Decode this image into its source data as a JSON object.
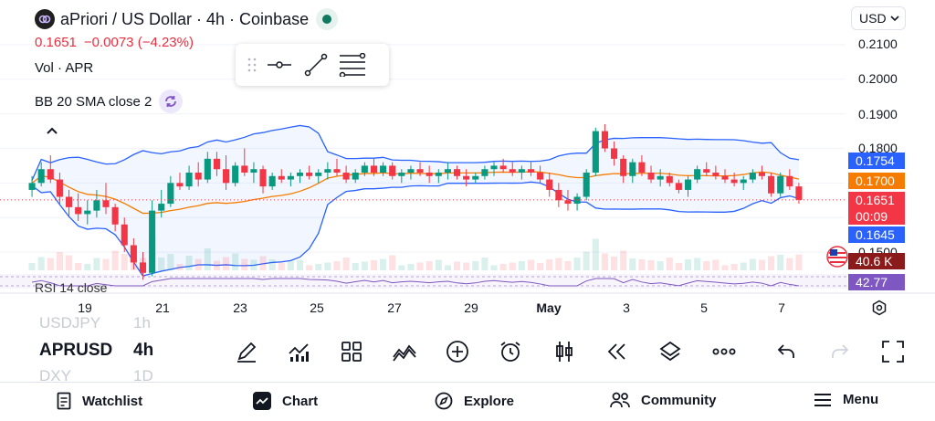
{
  "symbol": {
    "title": "aPriori / US Dollar · 4h · Coinbase",
    "price": "0.1651",
    "change": "−0.0073 (−4.23%)",
    "volume_label": "Vol · APR",
    "bb_label": "BB 20 SMA close 2",
    "rsi_label": "RSI 14 close"
  },
  "currency": "USD",
  "y_axis": {
    "ticks": [
      "0.2100",
      "0.2000",
      "0.1900",
      "0.1800",
      "0.1500"
    ],
    "tags": [
      {
        "value": "0.1754",
        "color": "#2962ff",
        "meaning": "bb-upper"
      },
      {
        "value": "0.1700",
        "color": "#f57c00",
        "meaning": "bb-basis"
      },
      {
        "value": "0.1651",
        "color": "#f23645",
        "meaning": "last-price"
      },
      {
        "value": "00:09",
        "color": "#f23645",
        "meaning": "countdown"
      },
      {
        "value": "0.1645",
        "color": "#2962ff",
        "meaning": "bb-lower"
      },
      {
        "value": "40.6 K",
        "color": "#8b1a1a",
        "meaning": "volume"
      },
      {
        "value": "42.77",
        "color": "#7e57c2",
        "meaning": "rsi"
      }
    ]
  },
  "x_axis": {
    "labels": [
      "19",
      "21",
      "23",
      "25",
      "27",
      "29",
      "May",
      "3",
      "5",
      "7"
    ]
  },
  "chart_data": {
    "type": "candlestick",
    "candles": [
      [
        0.168,
        0.172,
        0.166,
        0.17
      ],
      [
        0.17,
        0.176,
        0.169,
        0.174
      ],
      [
        0.174,
        0.178,
        0.17,
        0.171
      ],
      [
        0.171,
        0.173,
        0.164,
        0.166
      ],
      [
        0.166,
        0.168,
        0.16,
        0.163
      ],
      [
        0.163,
        0.167,
        0.159,
        0.161
      ],
      [
        0.161,
        0.165,
        0.158,
        0.162
      ],
      [
        0.162,
        0.168,
        0.16,
        0.165
      ],
      [
        0.165,
        0.17,
        0.161,
        0.163
      ],
      [
        0.163,
        0.164,
        0.156,
        0.158
      ],
      [
        0.158,
        0.16,
        0.15,
        0.152
      ],
      [
        0.152,
        0.154,
        0.145,
        0.147
      ],
      [
        0.147,
        0.15,
        0.142,
        0.144
      ],
      [
        0.144,
        0.165,
        0.143,
        0.162
      ],
      [
        0.162,
        0.168,
        0.16,
        0.164
      ],
      [
        0.164,
        0.172,
        0.163,
        0.17
      ],
      [
        0.17,
        0.173,
        0.168,
        0.169
      ],
      [
        0.169,
        0.175,
        0.168,
        0.173
      ],
      [
        0.173,
        0.176,
        0.169,
        0.171
      ],
      [
        0.171,
        0.179,
        0.17,
        0.177
      ],
      [
        0.177,
        0.179,
        0.172,
        0.174
      ],
      [
        0.174,
        0.178,
        0.168,
        0.17
      ],
      [
        0.17,
        0.176,
        0.169,
        0.175
      ],
      [
        0.175,
        0.18,
        0.172,
        0.173
      ],
      [
        0.173,
        0.176,
        0.17,
        0.174
      ],
      [
        0.174,
        0.175,
        0.167,
        0.169
      ],
      [
        0.169,
        0.173,
        0.168,
        0.172
      ],
      [
        0.172,
        0.174,
        0.17,
        0.171
      ],
      [
        0.171,
        0.173,
        0.169,
        0.172
      ],
      [
        0.172,
        0.174,
        0.17,
        0.173
      ],
      [
        0.173,
        0.175,
        0.171,
        0.172
      ],
      [
        0.172,
        0.174,
        0.17,
        0.173
      ],
      [
        0.173,
        0.176,
        0.171,
        0.174
      ],
      [
        0.174,
        0.177,
        0.172,
        0.173
      ],
      [
        0.173,
        0.175,
        0.17,
        0.171
      ],
      [
        0.171,
        0.174,
        0.17,
        0.173
      ],
      [
        0.173,
        0.176,
        0.172,
        0.175
      ],
      [
        0.175,
        0.177,
        0.172,
        0.173
      ],
      [
        0.173,
        0.176,
        0.172,
        0.175
      ],
      [
        0.175,
        0.176,
        0.171,
        0.172
      ],
      [
        0.172,
        0.174,
        0.17,
        0.173
      ],
      [
        0.173,
        0.175,
        0.171,
        0.174
      ],
      [
        0.174,
        0.176,
        0.172,
        0.173
      ],
      [
        0.173,
        0.175,
        0.17,
        0.172
      ],
      [
        0.172,
        0.174,
        0.17,
        0.173
      ],
      [
        0.173,
        0.176,
        0.171,
        0.174
      ],
      [
        0.174,
        0.175,
        0.171,
        0.172
      ],
      [
        0.172,
        0.174,
        0.169,
        0.171
      ],
      [
        0.171,
        0.173,
        0.17,
        0.172
      ],
      [
        0.172,
        0.175,
        0.171,
        0.174
      ],
      [
        0.174,
        0.176,
        0.172,
        0.175
      ],
      [
        0.175,
        0.177,
        0.173,
        0.174
      ],
      [
        0.174,
        0.176,
        0.172,
        0.173
      ],
      [
        0.173,
        0.175,
        0.171,
        0.174
      ],
      [
        0.174,
        0.176,
        0.172,
        0.173
      ],
      [
        0.173,
        0.175,
        0.17,
        0.171
      ],
      [
        0.171,
        0.173,
        0.166,
        0.168
      ],
      [
        0.168,
        0.17,
        0.163,
        0.165
      ],
      [
        0.165,
        0.168,
        0.162,
        0.164
      ],
      [
        0.164,
        0.167,
        0.162,
        0.166
      ],
      [
        0.166,
        0.174,
        0.165,
        0.173
      ],
      [
        0.173,
        0.186,
        0.172,
        0.185
      ],
      [
        0.185,
        0.187,
        0.179,
        0.18
      ],
      [
        0.18,
        0.182,
        0.175,
        0.177
      ],
      [
        0.177,
        0.178,
        0.17,
        0.172
      ],
      [
        0.172,
        0.177,
        0.17,
        0.176
      ],
      [
        0.176,
        0.178,
        0.172,
        0.173
      ],
      [
        0.173,
        0.175,
        0.17,
        0.171
      ],
      [
        0.171,
        0.174,
        0.169,
        0.172
      ],
      [
        0.172,
        0.173,
        0.169,
        0.17
      ],
      [
        0.17,
        0.171,
        0.167,
        0.168
      ],
      [
        0.168,
        0.172,
        0.166,
        0.171
      ],
      [
        0.171,
        0.175,
        0.17,
        0.174
      ],
      [
        0.174,
        0.176,
        0.172,
        0.173
      ],
      [
        0.173,
        0.175,
        0.171,
        0.172
      ],
      [
        0.172,
        0.174,
        0.17,
        0.171
      ],
      [
        0.171,
        0.173,
        0.169,
        0.17
      ],
      [
        0.17,
        0.172,
        0.168,
        0.171
      ],
      [
        0.171,
        0.174,
        0.17,
        0.173
      ],
      [
        0.173,
        0.175,
        0.171,
        0.172
      ],
      [
        0.172,
        0.173,
        0.166,
        0.167
      ],
      [
        0.167,
        0.173,
        0.166,
        0.172
      ],
      [
        0.172,
        0.174,
        0.168,
        0.169
      ],
      [
        0.169,
        0.17,
        0.164,
        0.1651
      ]
    ],
    "y_range": [
      0.145,
      0.215
    ],
    "last_price": 0.1651,
    "bb_upper_last": 0.1754,
    "bb_basis_last": 0.17,
    "bb_lower_last": 0.1645
  },
  "toolbar": {
    "symbols": [
      {
        "name": "USDJPY",
        "tf": "1h",
        "state": "prev"
      },
      {
        "name": "APRUSD",
        "tf": "4h",
        "state": "current"
      },
      {
        "name": "DXY",
        "tf": "1D",
        "state": "next"
      }
    ],
    "icons": [
      "pencil-icon",
      "indicators-icon",
      "grid-layout-icon",
      "compare-icon",
      "add-icon",
      "alarm-icon",
      "candles-icon",
      "replay-icon",
      "layers-icon",
      "more-icon",
      "undo-icon",
      "redo-icon",
      "fullscreen-icon"
    ]
  },
  "nav": {
    "watchlist": "Watchlist",
    "chart": "Chart",
    "explore": "Explore",
    "community": "Community",
    "menu": "Menu"
  }
}
